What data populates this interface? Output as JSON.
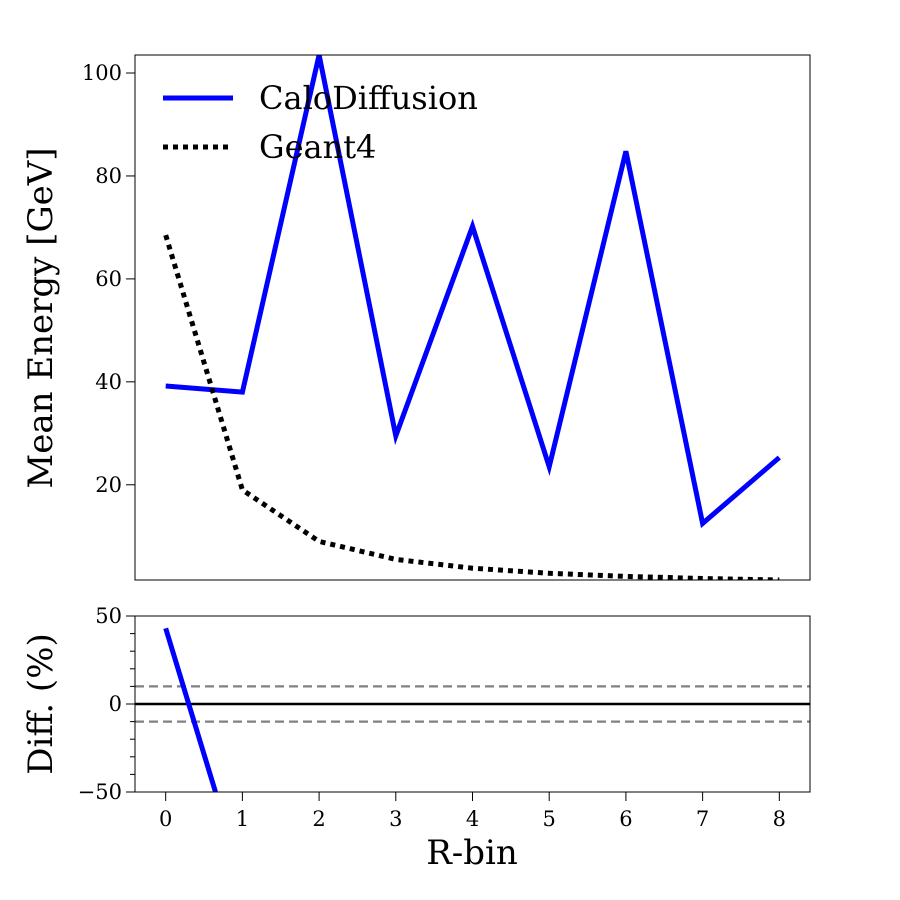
{
  "chart_data": [
    {
      "panel": "main",
      "type": "line",
      "x": [
        0,
        1,
        2,
        3,
        4,
        5,
        6,
        7,
        8
      ],
      "xlim": [
        -0.4,
        8.4
      ],
      "ylim": [
        1.5,
        103.5
      ],
      "yticks": [
        20,
        40,
        60,
        80,
        100
      ],
      "ylabel": "Mean Energy [GeV]",
      "legend_position": "upper-left",
      "grid": false,
      "series": [
        {
          "name": "CaloDiffusion",
          "color": "#0000ff",
          "style": "solid",
          "values": [
            39.2,
            38.0,
            103.5,
            29.5,
            70.2,
            23.5,
            84.8,
            12.5,
            25.3
          ]
        },
        {
          "name": "Geant4",
          "color": "#000000",
          "style": "dotted",
          "values": [
            68.5,
            19.0,
            9.0,
            5.5,
            3.8,
            2.8,
            2.2,
            1.8,
            1.5
          ]
        }
      ]
    },
    {
      "panel": "ratio",
      "type": "line",
      "xlim": [
        -0.4,
        8.4
      ],
      "ylim": [
        -50,
        50
      ],
      "yticks": [
        50,
        0,
        -50
      ],
      "ytick_labels": [
        "50",
        "0",
        "−50"
      ],
      "xticks": [
        0,
        1,
        2,
        3,
        4,
        5,
        6,
        7,
        8
      ],
      "xlabel": "R-bin",
      "ylabel": "Diff. (%)",
      "reference_lines": [
        {
          "y": 0,
          "color": "#000000",
          "style": "solid"
        },
        {
          "y": 10,
          "color": "#808080",
          "style": "dashed"
        },
        {
          "y": -10,
          "color": "#808080",
          "style": "dashed"
        }
      ],
      "series": [
        {
          "name": "CaloDiffusion",
          "color": "#0000ff",
          "style": "solid",
          "x": [
            0,
            0.65
          ],
          "values": [
            43,
            -50
          ]
        }
      ]
    }
  ]
}
